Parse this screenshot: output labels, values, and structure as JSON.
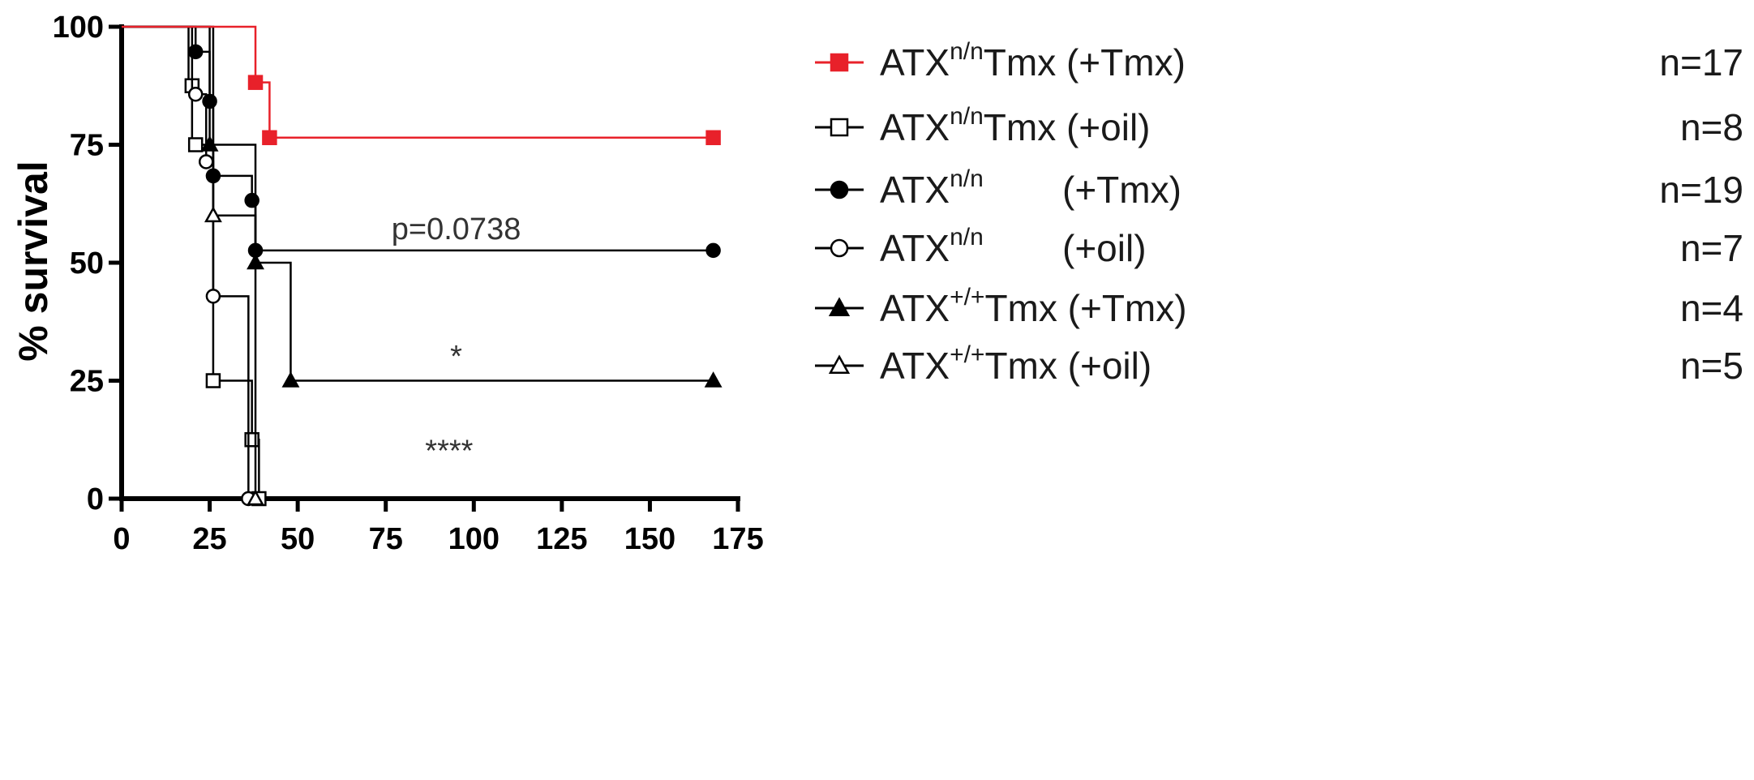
{
  "chart_data": {
    "type": "line",
    "subtype": "kaplan-meier survival",
    "ylabel": "% survival",
    "xlabel": "",
    "xlim": [
      0,
      175
    ],
    "ylim": [
      0,
      100
    ],
    "x_ticks": [
      "0",
      "25",
      "50",
      "75",
      "100",
      "125",
      "150",
      "175"
    ],
    "y_ticks": [
      "0",
      "25",
      "50",
      "75",
      "100"
    ],
    "grid": false,
    "legend_position": "right",
    "annotations": [
      {
        "text": "p=0.0738",
        "x": 95,
        "y": 55
      },
      {
        "text": "*",
        "x": 95,
        "y": 28
      },
      {
        "text": "****",
        "x": 93,
        "y": 8
      }
    ],
    "series": [
      {
        "label_main": "ATX",
        "label_sup": "n/n",
        "label_rest": "Tmx (+Tmx)",
        "n": "n=17",
        "color": "#e8212a",
        "marker": "square",
        "filled": true,
        "steps": [
          [
            0,
            100
          ],
          [
            38,
            88.2
          ],
          [
            42,
            76.5
          ],
          [
            168,
            76.5
          ]
        ],
        "markers": [
          [
            38,
            88.2
          ],
          [
            42,
            76.5
          ],
          [
            168,
            76.5
          ]
        ]
      },
      {
        "label_main": "ATX",
        "label_sup": "n/n",
        "label_rest": "Tmx (+oil)",
        "n": "n=8",
        "color": "#000000",
        "marker": "square",
        "filled": false,
        "steps": [
          [
            0,
            100
          ],
          [
            19,
            87.5
          ],
          [
            20,
            75
          ],
          [
            26,
            25
          ],
          [
            37,
            12.5
          ],
          [
            39,
            0
          ]
        ],
        "markers": [
          [
            20,
            87.5
          ],
          [
            21,
            75
          ],
          [
            26,
            25
          ],
          [
            37,
            12.5
          ],
          [
            39,
            0
          ]
        ]
      },
      {
        "label_main": "ATX",
        "label_sup": "n/n",
        "label_rest": "(+Tmx)",
        "n": "n=19",
        "color": "#000000",
        "marker": "circle",
        "filled": true,
        "steps": [
          [
            0,
            100
          ],
          [
            21,
            94.7
          ],
          [
            25,
            84.2
          ],
          [
            26,
            68.4
          ],
          [
            37,
            63.2
          ],
          [
            38,
            52.6
          ],
          [
            168,
            52.6
          ]
        ],
        "markers": [
          [
            21,
            94.7
          ],
          [
            25,
            84.2
          ],
          [
            26,
            68.4
          ],
          [
            37,
            63.2
          ],
          [
            38,
            52.6
          ],
          [
            168,
            52.6
          ]
        ]
      },
      {
        "label_main": "ATX",
        "label_sup": "n/n",
        "label_rest": "(+oil)",
        "n": "n=7",
        "color": "#000000",
        "marker": "circle",
        "filled": false,
        "steps": [
          [
            0,
            100
          ],
          [
            20,
            85.7
          ],
          [
            24,
            71.4
          ],
          [
            26,
            42.9
          ],
          [
            36,
            0
          ]
        ],
        "markers": [
          [
            21,
            85.7
          ],
          [
            24,
            71.4
          ],
          [
            26,
            42.9
          ],
          [
            36,
            0
          ]
        ]
      },
      {
        "label_main": "ATX",
        "label_sup": "+/+",
        "label_rest": "Tmx (+Tmx)",
        "n": "n=4",
        "color": "#000000",
        "marker": "triangle",
        "filled": true,
        "steps": [
          [
            0,
            100
          ],
          [
            25,
            75
          ],
          [
            38,
            50
          ],
          [
            48,
            25
          ],
          [
            168,
            25
          ]
        ],
        "markers": [
          [
            25,
            75
          ],
          [
            38,
            50
          ],
          [
            48,
            25
          ],
          [
            168,
            25
          ]
        ]
      },
      {
        "label_main": "ATX",
        "label_sup": "+/+",
        "label_rest": "Tmx (+oil)",
        "n": "n=5",
        "color": "#000000",
        "marker": "triangle",
        "filled": false,
        "steps": [
          [
            0,
            100
          ],
          [
            26,
            60
          ],
          [
            38,
            0
          ]
        ],
        "markers": [
          [
            26,
            60
          ],
          [
            38,
            0
          ]
        ]
      }
    ]
  }
}
